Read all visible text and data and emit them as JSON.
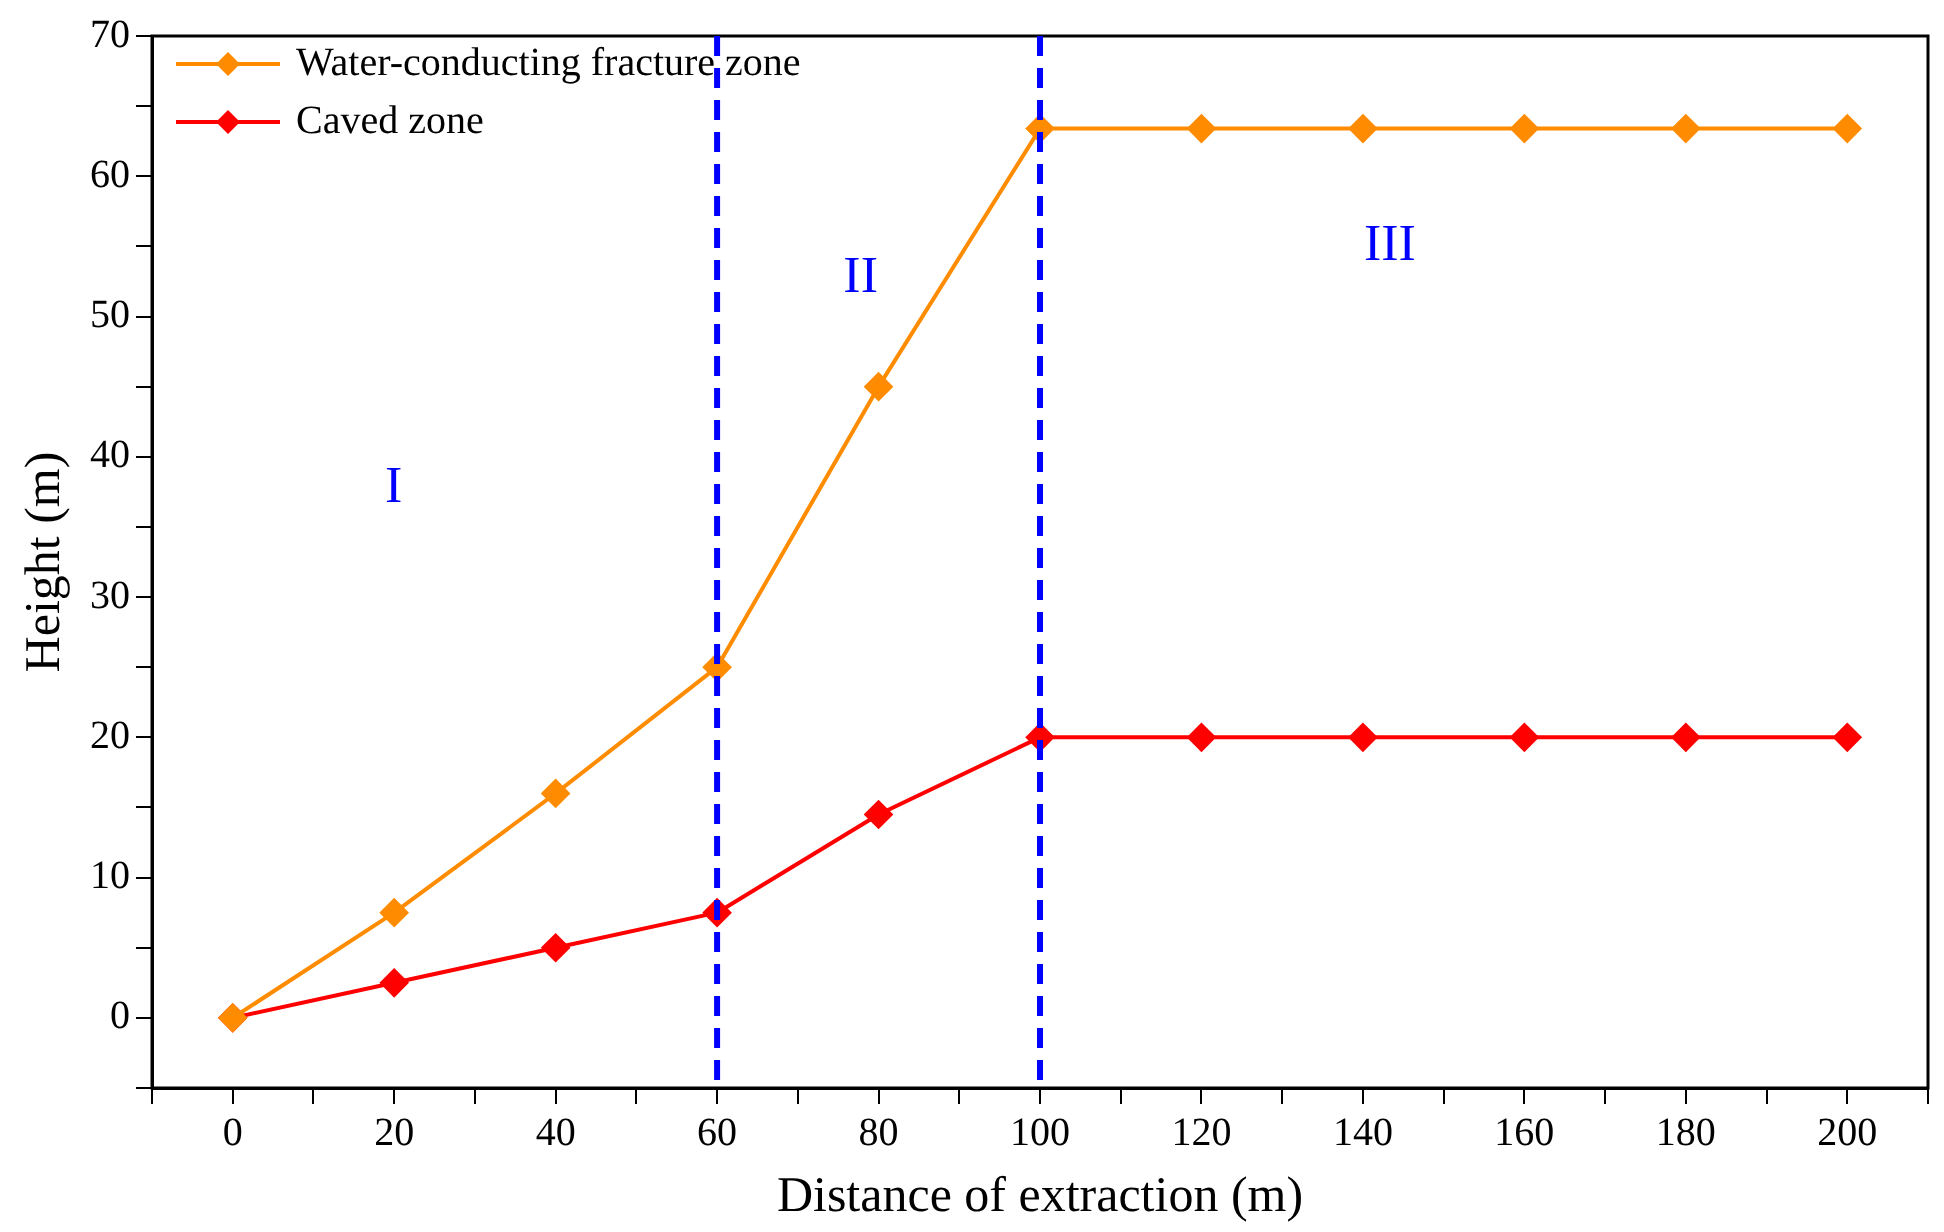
{
  "chart_data": {
    "type": "line",
    "xlabel": "Distance of extraction (m)",
    "ylabel": "Height (m)",
    "x": [
      0,
      20,
      40,
      60,
      80,
      100,
      120,
      140,
      160,
      180,
      200
    ],
    "series": [
      {
        "name": "Water-conducting fracture zone",
        "color": "#ff8c00",
        "values": [
          0,
          7.5,
          16,
          25,
          45,
          63.4,
          63.4,
          63.4,
          63.4,
          63.4,
          63.4
        ]
      },
      {
        "name": "Caved zone",
        "color": "#ff0000",
        "values": [
          0,
          2.5,
          5,
          7.5,
          14.5,
          20,
          20,
          20,
          20,
          20,
          20
        ]
      }
    ],
    "xlim": [
      -10,
      210
    ],
    "xticks": [
      {
        "value": -10,
        "label": null
      },
      0,
      {
        "value": 10,
        "label": null
      },
      20,
      {
        "value": 30,
        "label": null
      },
      40,
      {
        "value": 50,
        "label": null
      },
      60,
      {
        "value": 70,
        "label": null
      },
      80,
      {
        "value": 90,
        "label": null
      },
      100,
      {
        "value": 110,
        "label": null
      },
      120,
      {
        "value": 130,
        "label": null
      },
      140,
      {
        "value": 150,
        "label": null
      },
      160,
      {
        "value": 170,
        "label": null
      },
      180,
      {
        "value": 190,
        "label": null
      },
      200,
      {
        "value": 210,
        "label": null
      }
    ],
    "ylim": [
      -5,
      70
    ],
    "yticks": [
      {
        "value": -5,
        "label": null
      },
      0,
      {
        "value": 5,
        "label": null
      },
      10,
      {
        "value": 15,
        "label": null
      },
      20,
      {
        "value": 25,
        "label": null
      },
      30,
      {
        "value": 35,
        "label": null
      },
      40,
      {
        "value": 45,
        "label": null
      },
      50,
      {
        "value": 55,
        "label": null
      },
      60,
      {
        "value": 65,
        "label": null
      },
      70
    ],
    "ref_lines": [
      {
        "axis": "x",
        "value": 60,
        "color": "#0000ff",
        "line_style": "dashed"
      },
      {
        "axis": "x",
        "value": 100,
        "color": "#0000ff",
        "line_style": "dashed"
      }
    ],
    "annotations": [
      "I",
      "II",
      "III"
    ],
    "marker": "diamond",
    "line_style": "solid",
    "grid": false,
    "legend": "top left"
  }
}
